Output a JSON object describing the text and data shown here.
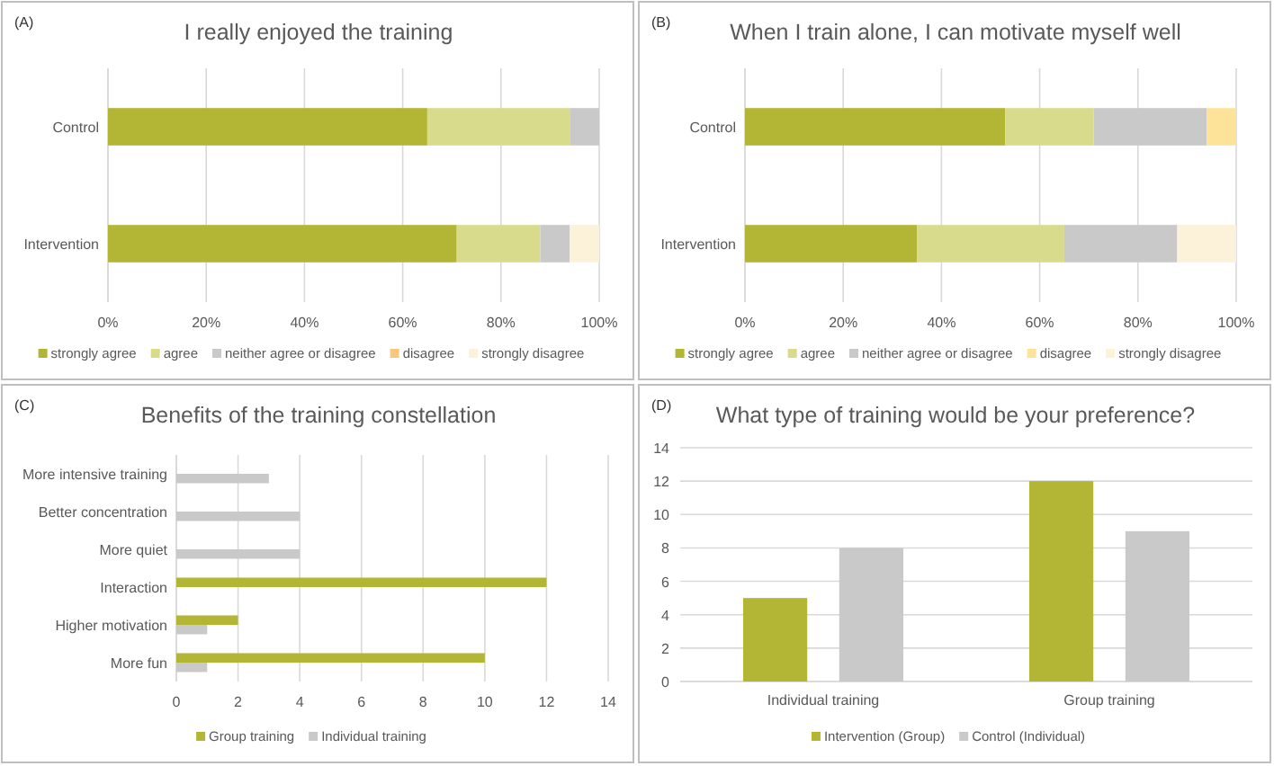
{
  "chart_data": [
    {
      "type": "bar",
      "orientation": "horizontal",
      "stacked": true,
      "title": "I really enjoyed the training",
      "annotations": [
        "(A)"
      ],
      "categories": [
        "Control",
        "Intervention"
      ],
      "series": [
        {
          "name": "strongly agree",
          "color": "#b3b634",
          "values": [
            65,
            71
          ]
        },
        {
          "name": "agree",
          "color": "#d8db8c",
          "values": [
            29,
            17
          ]
        },
        {
          "name": "neither agree or disagree",
          "color": "#c9c9c9",
          "values": [
            6,
            6
          ]
        },
        {
          "name": "disagree",
          "color": "#f7c77e",
          "values": [
            0,
            0
          ]
        },
        {
          "name": "strongly disagree",
          "color": "#fcf1d9",
          "values": [
            0,
            6
          ]
        }
      ],
      "xlim": [
        0,
        100
      ],
      "xticks": [
        {
          "value": 0,
          "label": "0%"
        },
        {
          "value": 20,
          "label": "20%"
        },
        {
          "value": 40,
          "label": "40%"
        },
        {
          "value": 60,
          "label": "60%"
        },
        {
          "value": 80,
          "label": "80%"
        },
        {
          "value": 100,
          "label": "100%"
        }
      ],
      "grid": "x",
      "legend": "bottom"
    },
    {
      "type": "bar",
      "orientation": "horizontal",
      "stacked": true,
      "title": "When I train alone, I can motivate myself well",
      "annotations": [
        "(B)"
      ],
      "categories": [
        "Control",
        "Intervention"
      ],
      "series": [
        {
          "name": "strongly agree",
          "color": "#b3b634",
          "values": [
            53,
            35
          ]
        },
        {
          "name": "agree",
          "color": "#d8db8c",
          "values": [
            18,
            30
          ]
        },
        {
          "name": "neither agree or disagree",
          "color": "#c9c9c9",
          "values": [
            23,
            23
          ]
        },
        {
          "name": "disagree",
          "color": "#fde39a",
          "values": [
            6,
            0
          ]
        },
        {
          "name": "strongly disagree",
          "color": "#fcf1d9",
          "values": [
            0,
            12
          ]
        }
      ],
      "xlim": [
        0,
        100
      ],
      "xticks": [
        {
          "value": 0,
          "label": "0%"
        },
        {
          "value": 20,
          "label": "20%"
        },
        {
          "value": 40,
          "label": "40%"
        },
        {
          "value": 60,
          "label": "60%"
        },
        {
          "value": 80,
          "label": "80%"
        },
        {
          "value": 100,
          "label": "100%"
        }
      ],
      "grid": "x",
      "legend": "bottom"
    },
    {
      "type": "bar",
      "orientation": "horizontal",
      "title": "Benefits of the training constellation",
      "annotations": [
        "(C)"
      ],
      "categories": [
        "More intensive training",
        "Better concentration",
        "More quiet",
        "Interaction",
        "Higher motivation",
        "More fun"
      ],
      "series": [
        {
          "name": "Group training",
          "color": "#b3b634",
          "values": [
            null,
            null,
            null,
            12,
            2,
            10
          ]
        },
        {
          "name": "Individual training",
          "color": "#c9c9c9",
          "values": [
            3,
            4,
            4,
            null,
            1,
            1
          ]
        }
      ],
      "xlim": [
        0,
        14
      ],
      "xticks": [
        0,
        2,
        4,
        6,
        8,
        10,
        12,
        14
      ],
      "grid": "x",
      "legend": "bottom"
    },
    {
      "type": "bar",
      "title": "What type of training would be your preference?",
      "annotations": [
        "(D)"
      ],
      "categories": [
        "Individual training",
        "Group training"
      ],
      "series": [
        {
          "name": "Intervention (Group)",
          "color": "#b3b634",
          "values": [
            5,
            12
          ]
        },
        {
          "name": "Control (Individual)",
          "color": "#c9c9c9",
          "values": [
            8,
            9
          ]
        }
      ],
      "ylim": [
        0,
        14
      ],
      "yticks": [
        0,
        2,
        4,
        6,
        8,
        10,
        12,
        14
      ],
      "grid": "y",
      "legend": "bottom"
    }
  ]
}
